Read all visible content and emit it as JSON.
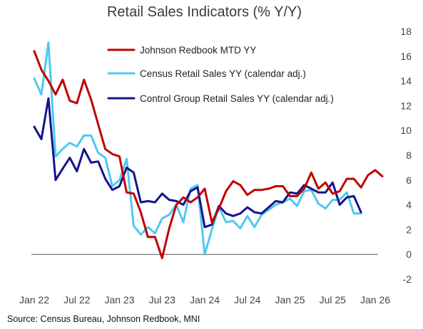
{
  "title": "Retail Sales Indicators (% Y/Y)",
  "source": "Source: Census Bureau, Johnson Redbook, MNI",
  "chart_data": {
    "type": "line",
    "title": "Retail Sales Indicators (% Y/Y)",
    "xlabel": "",
    "ylabel": "",
    "ylim": [
      -2,
      18
    ],
    "yticks": [
      "-2",
      "0",
      "2",
      "4",
      "6",
      "8",
      "10",
      "12",
      "14",
      "16",
      "18"
    ],
    "xticks": [
      "Jan 22",
      "Jul 22",
      "Jan 23",
      "Jul 23",
      "Jan 24",
      "Jul 24",
      "Jan 25",
      "Jul 25",
      "Jan 26"
    ],
    "legend_position": "top-left",
    "grid": false,
    "series": [
      {
        "name": "Johnson Redbook MTD YY",
        "color": "#c00000",
        "x": [
          "2022-01",
          "2022-02",
          "2022-03",
          "2022-04",
          "2022-05",
          "2022-06",
          "2022-07",
          "2022-08",
          "2022-09",
          "2022-10",
          "2022-11",
          "2022-12",
          "2023-01",
          "2023-02",
          "2023-03",
          "2023-04",
          "2023-05",
          "2023-06",
          "2023-07",
          "2023-08",
          "2023-09",
          "2023-10",
          "2023-11",
          "2023-12",
          "2024-01",
          "2024-02",
          "2024-03",
          "2024-04",
          "2024-05",
          "2024-06",
          "2024-07",
          "2024-08",
          "2024-09",
          "2024-10",
          "2024-11",
          "2024-12",
          "2025-01",
          "2025-02",
          "2025-03",
          "2025-04",
          "2025-05",
          "2025-06",
          "2025-07",
          "2025-08",
          "2025-09",
          "2025-10",
          "2025-11",
          "2025-12",
          "2026-01",
          "2026-02"
        ],
        "y": [
          16.4,
          14.9,
          14.0,
          12.9,
          14.1,
          12.4,
          12.2,
          14.1,
          12.5,
          10.5,
          8.5,
          8.1,
          7.9,
          5.0,
          4.9,
          3.4,
          1.4,
          1.4,
          -0.3,
          2.1,
          4.0,
          4.6,
          4.2,
          4.6,
          5.3,
          2.6,
          3.7,
          5.1,
          5.9,
          5.6,
          4.8,
          5.2,
          5.2,
          5.3,
          5.5,
          5.5,
          4.7,
          4.7,
          5.3,
          6.6,
          5.3,
          5.8,
          4.9,
          5.1,
          6.1,
          6.1,
          5.4,
          6.4,
          6.8,
          6.3
        ]
      },
      {
        "name": "Census Retail Sales YY (calendar adj.)",
        "color": "#4fc9f0",
        "x": [
          "2022-01",
          "2022-02",
          "2022-03",
          "2022-04",
          "2022-05",
          "2022-06",
          "2022-07",
          "2022-08",
          "2022-09",
          "2022-10",
          "2022-11",
          "2022-12",
          "2023-01",
          "2023-02",
          "2023-03",
          "2023-04",
          "2023-05",
          "2023-06",
          "2023-07",
          "2023-08",
          "2023-09",
          "2023-10",
          "2023-11",
          "2023-12",
          "2024-01",
          "2024-02",
          "2024-03",
          "2024-04",
          "2024-05",
          "2024-06",
          "2024-07",
          "2024-08",
          "2024-09",
          "2024-10",
          "2024-11",
          "2024-12",
          "2025-01",
          "2025-02",
          "2025-03",
          "2025-04",
          "2025-05",
          "2025-06",
          "2025-07",
          "2025-08",
          "2025-09",
          "2025-10",
          "2025-11"
        ],
        "y": [
          14.2,
          12.9,
          17.1,
          7.9,
          8.5,
          9.0,
          8.7,
          9.6,
          9.6,
          8.2,
          7.8,
          5.5,
          6.0,
          7.7,
          2.3,
          1.6,
          2.2,
          1.7,
          2.9,
          3.2,
          4.0,
          2.6,
          5.3,
          5.6,
          0.0,
          2.0,
          3.8,
          2.6,
          2.7,
          2.1,
          3.1,
          2.2,
          3.2,
          3.6,
          4.0,
          4.2,
          4.5,
          3.9,
          5.1,
          5.2,
          4.1,
          3.7,
          4.4,
          4.4,
          5.0,
          3.3,
          3.3
        ]
      },
      {
        "name": "Control Group Retail Sales YY (calendar adj.)",
        "color": "#14148c",
        "x": [
          "2022-01",
          "2022-02",
          "2022-03",
          "2022-04",
          "2022-05",
          "2022-06",
          "2022-07",
          "2022-08",
          "2022-09",
          "2022-10",
          "2022-11",
          "2022-12",
          "2023-01",
          "2023-02",
          "2023-03",
          "2023-04",
          "2023-05",
          "2023-06",
          "2023-07",
          "2023-08",
          "2023-09",
          "2023-10",
          "2023-11",
          "2023-12",
          "2024-01",
          "2024-02",
          "2024-03",
          "2024-04",
          "2024-05",
          "2024-06",
          "2024-07",
          "2024-08",
          "2024-09",
          "2024-10",
          "2024-11",
          "2024-12",
          "2025-01",
          "2025-02",
          "2025-03",
          "2025-04",
          "2025-05",
          "2025-06",
          "2025-07",
          "2025-08",
          "2025-09",
          "2025-10",
          "2025-11"
        ],
        "y": [
          10.3,
          9.3,
          12.6,
          6.0,
          6.9,
          7.8,
          6.7,
          8.5,
          7.4,
          7.5,
          6.1,
          5.2,
          5.5,
          7.0,
          6.6,
          4.2,
          4.3,
          4.2,
          4.9,
          4.4,
          4.3,
          4.0,
          5.1,
          5.4,
          2.2,
          2.4,
          3.9,
          3.3,
          3.1,
          3.3,
          3.8,
          3.4,
          3.3,
          3.8,
          4.3,
          4.2,
          5.0,
          4.9,
          5.6,
          5.3,
          5.0,
          5.0,
          5.8,
          4.0,
          4.6,
          4.7,
          3.4
        ]
      }
    ]
  }
}
